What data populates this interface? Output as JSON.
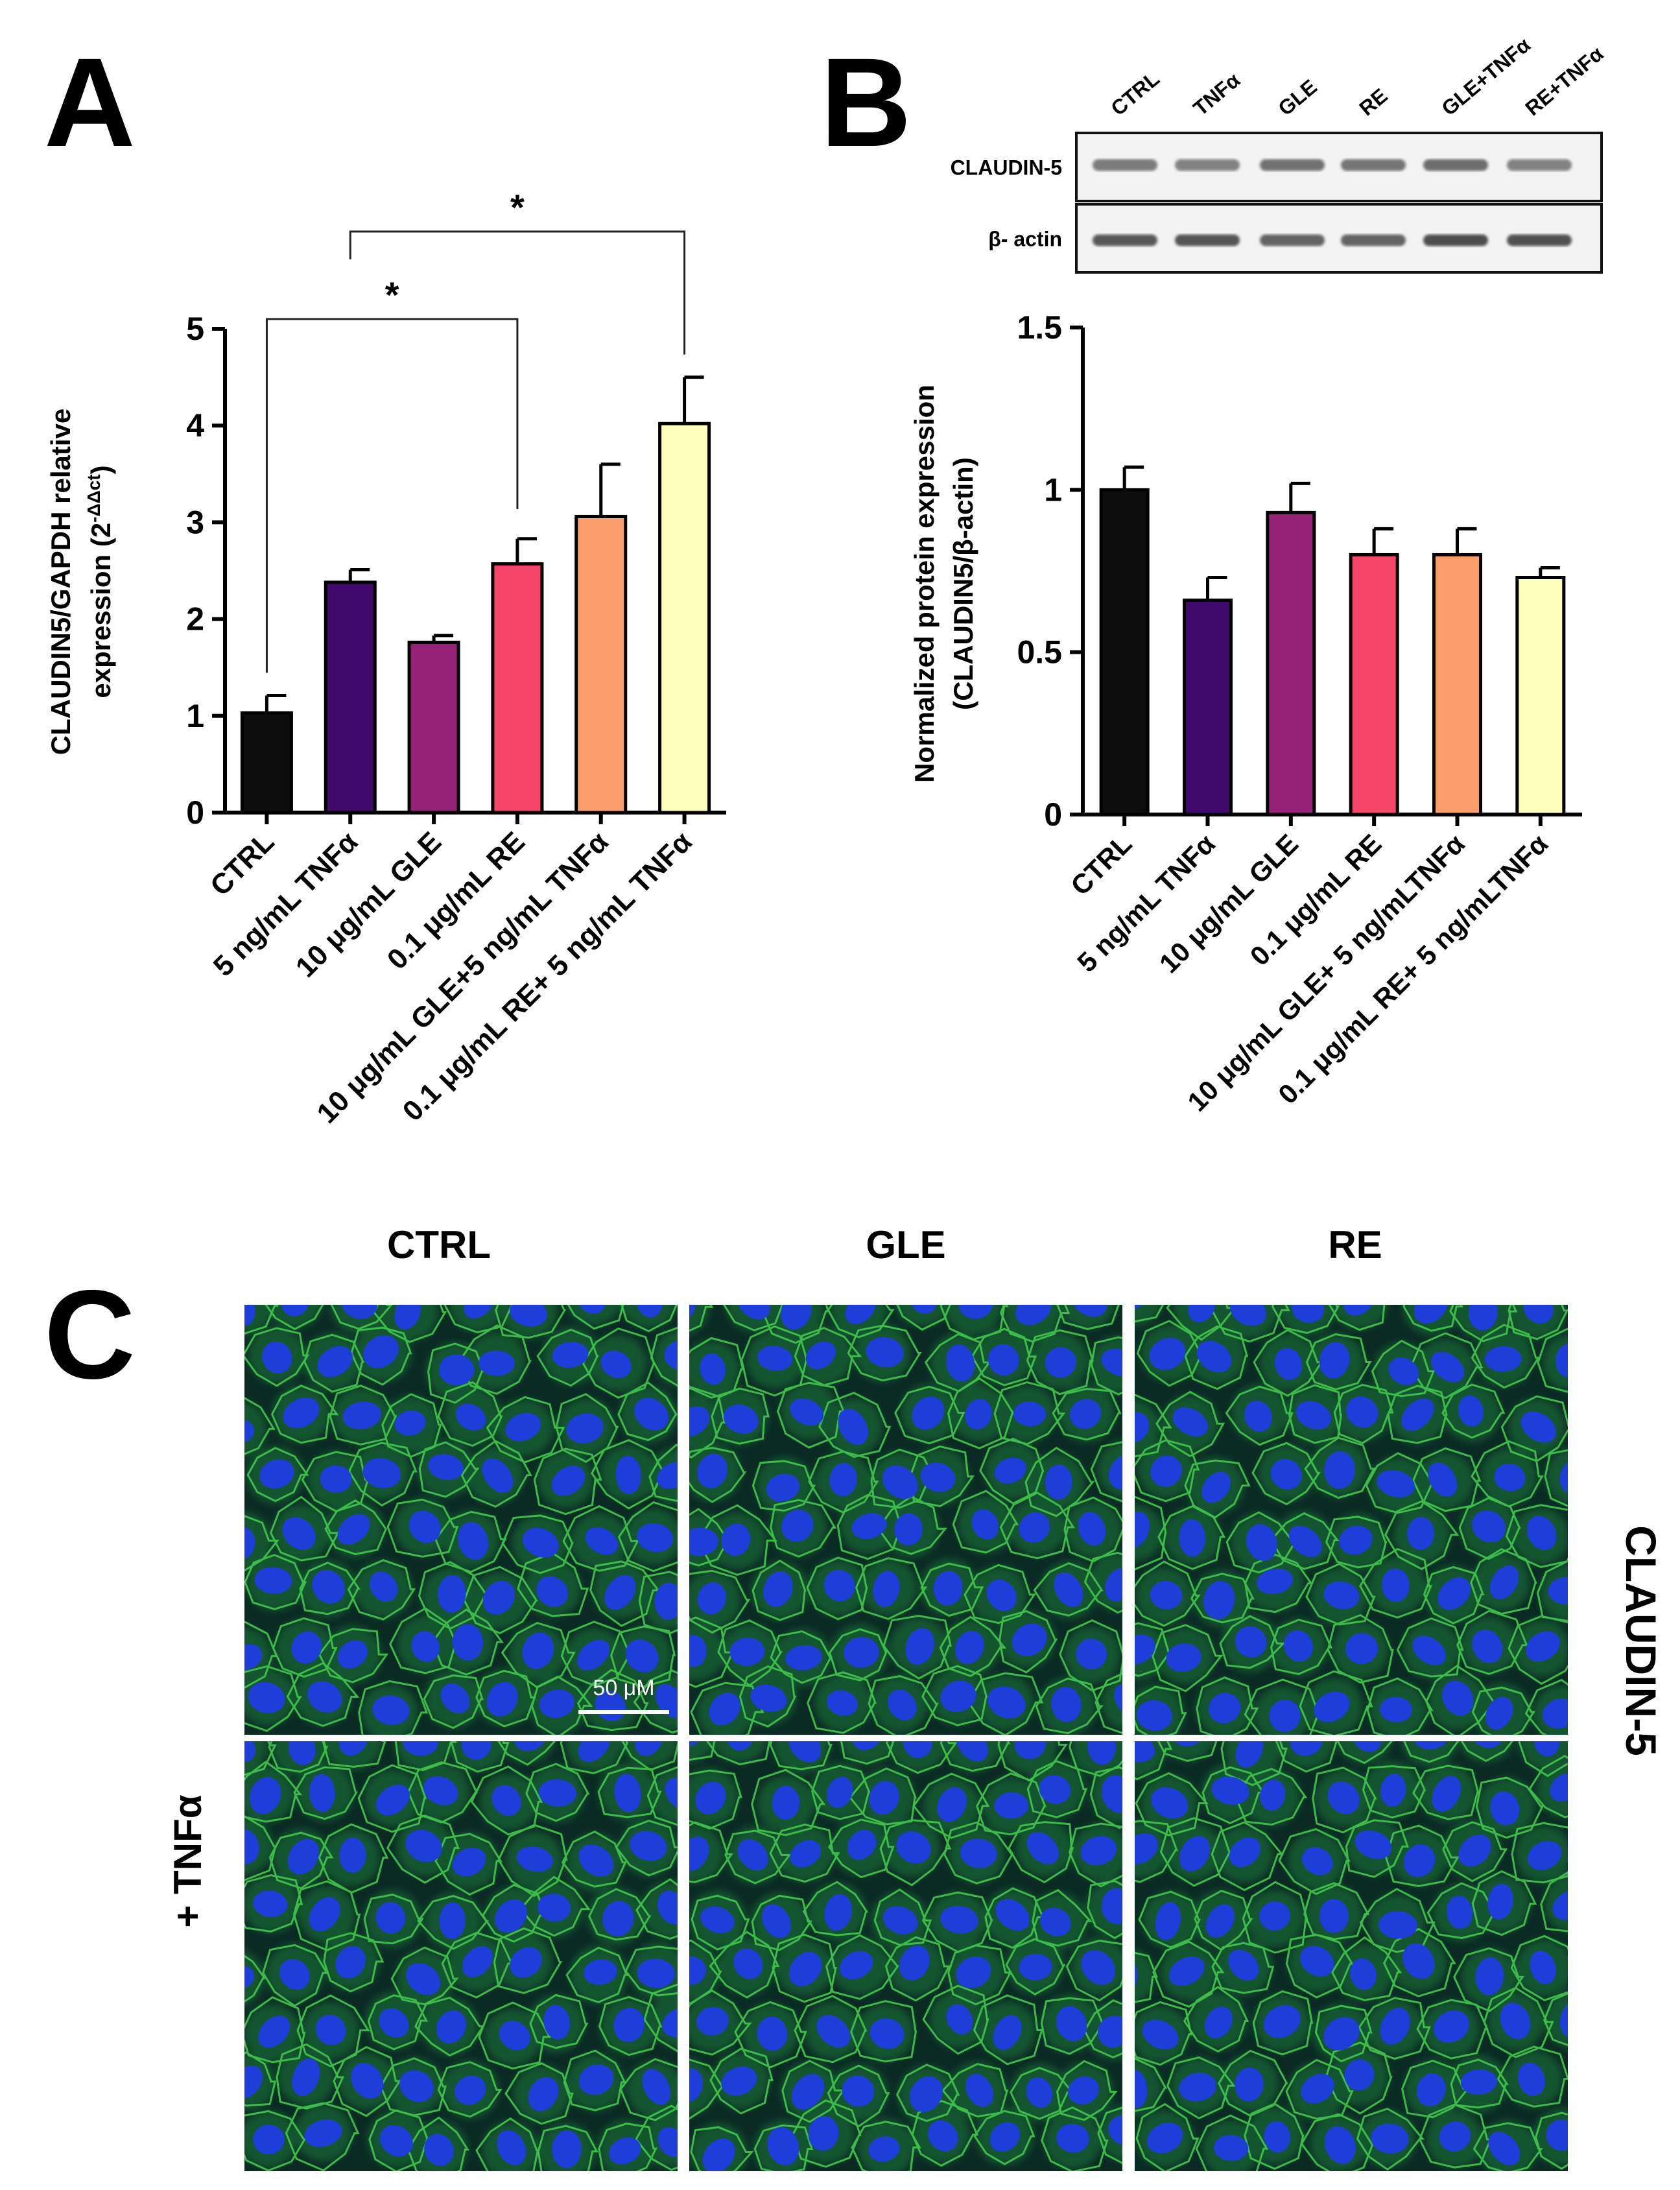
{
  "figure": {
    "panels": {
      "A": {
        "letter": "A"
      },
      "B": {
        "letter": "B"
      },
      "C": {
        "letter": "C"
      }
    }
  },
  "chart_data": [
    {
      "panel": "A",
      "type": "bar",
      "title": "",
      "xlabel": "",
      "ylabel_line1": "CLAUDIN5/GAPDH relative",
      "ylabel_line2": "expression (2",
      "ylabel_sup": "-ΔΔct",
      "ylabel_close": ")",
      "categories": [
        "CTRL",
        "5 ng/mL TNFα",
        "10 μg/mL GLE",
        "0.1 μg/mL RE",
        "10 μg/mL GLE+5 ng/mL TNFα",
        "0.1 μg/mL RE+ 5 ng/mL TNFα"
      ],
      "values": [
        1.03,
        2.38,
        1.76,
        2.57,
        3.06,
        4.02
      ],
      "errors": [
        0.18,
        0.13,
        0.07,
        0.26,
        0.54,
        0.48
      ],
      "colors": [
        "#0d0d0d",
        "#3f0a6b",
        "#952277",
        "#f5466a",
        "#fb9e6b",
        "#fdfebc"
      ],
      "ylim": [
        0,
        5
      ],
      "yticks": [
        "0",
        "1",
        "2",
        "3",
        "4",
        "5"
      ],
      "significance": [
        {
          "from": 0,
          "to": 3,
          "label": "*"
        },
        {
          "from": 1,
          "to": 5,
          "label": "*"
        }
      ]
    },
    {
      "panel": "B",
      "type": "bar",
      "title": "",
      "xlabel": "",
      "ylabel_line1": "Normalized protein expression",
      "ylabel_line2": "(CLAUDIN5/β-actin)",
      "categories": [
        "CTRL",
        "5 ng/mL TNFα",
        "10 μg/mL GLE",
        "0.1 μg/mL RE",
        "10 μg/mL GLE+ 5 ng/mLTNFα",
        "0.1 μg/mL RE+ 5 ng/mLTNFα"
      ],
      "values": [
        1.0,
        0.66,
        0.93,
        0.8,
        0.8,
        0.73
      ],
      "errors": [
        0.07,
        0.07,
        0.09,
        0.08,
        0.08,
        0.03
      ],
      "colors": [
        "#0d0d0d",
        "#3f0a6b",
        "#952277",
        "#f5466a",
        "#fb9e6b",
        "#fdfebc"
      ],
      "ylim": [
        0,
        1.5
      ],
      "yticks": [
        "0",
        "0.5",
        "1",
        "1.5"
      ]
    }
  ],
  "western_blot": {
    "lane_labels": [
      "CTRL",
      "TNFα",
      "GLE",
      "RE",
      "GLE+TNFα",
      "RE+TNFα"
    ],
    "rows": [
      {
        "label": "CLAUDIN-5",
        "intensity": [
          0.55,
          0.5,
          0.62,
          0.6,
          0.65,
          0.5
        ]
      },
      {
        "label": "β- actin",
        "intensity": [
          0.8,
          0.82,
          0.72,
          0.72,
          0.88,
          0.85
        ]
      }
    ]
  },
  "microscopy": {
    "column_labels": [
      "CTRL",
      "GLE",
      "RE"
    ],
    "row_label": "+ TNFα",
    "side_label": "CLAUDIN-5",
    "scale_bar": "50 μM",
    "nucleus_color": "#1f3dd8",
    "membrane_color": "#3fc24a",
    "background_color": "#0b2a24"
  }
}
